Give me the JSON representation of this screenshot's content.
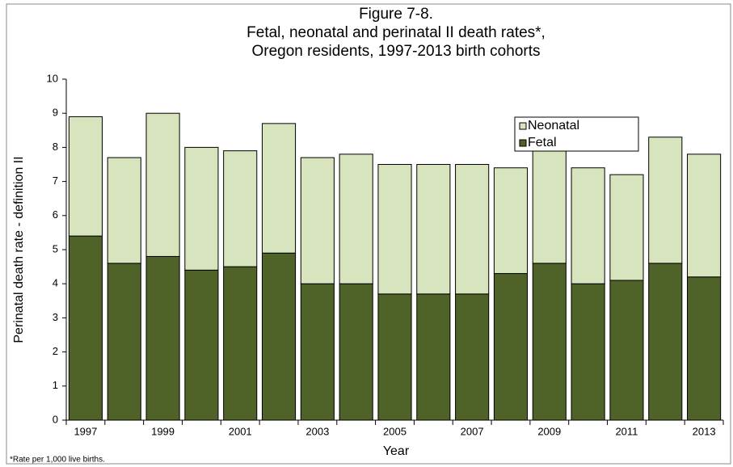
{
  "chart_data": {
    "type": "stacked_bar",
    "title": [
      "Figure 7-8.",
      "Fetal, neonatal and perinatal II death rates*,",
      "Oregon residents, 1997-2013 birth cohorts"
    ],
    "xlabel": "Year",
    "ylabel": "Perinatal death rate - definition II",
    "footnote": "*Rate per 1,000 live births.",
    "categories": [
      "1997",
      null,
      "1999",
      null,
      "2001",
      null,
      "2003",
      null,
      "2005",
      null,
      "2007",
      null,
      "2009",
      null,
      "2011",
      null,
      "2013"
    ],
    "series": [
      {
        "name": "Fetal",
        "color": "#4f6228",
        "values": [
          5.4,
          4.6,
          4.8,
          4.4,
          4.5,
          4.9,
          4.0,
          4.0,
          3.7,
          3.7,
          3.7,
          4.3,
          4.6,
          4.0,
          4.1,
          4.6,
          4.2
        ]
      },
      {
        "name": "Neonatal",
        "color": "#d7e4bd",
        "values": [
          3.5,
          3.1,
          4.2,
          3.6,
          3.4,
          3.8,
          3.7,
          3.8,
          3.8,
          3.8,
          3.8,
          3.1,
          3.3,
          3.4,
          3.1,
          3.7,
          3.6
        ]
      }
    ],
    "ylim": [
      0,
      10
    ],
    "yticks": [
      0,
      1,
      2,
      3,
      4,
      5,
      6,
      7,
      8,
      9,
      10
    ],
    "grid": false,
    "legend": "upper right"
  }
}
